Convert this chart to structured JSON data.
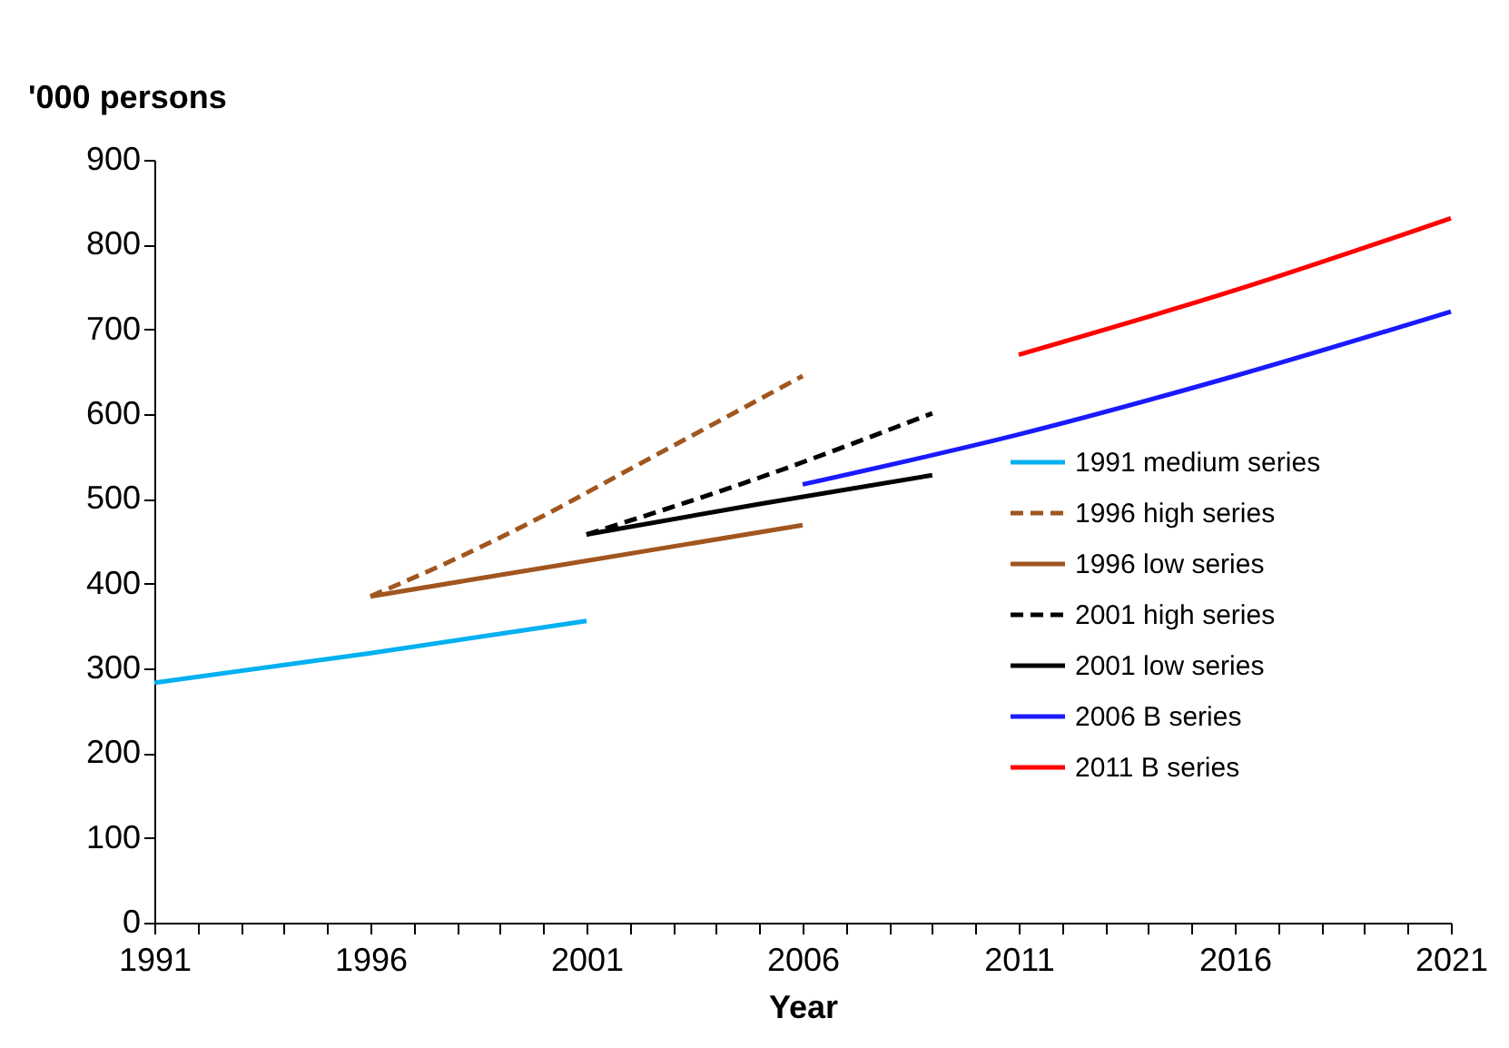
{
  "chart_data": {
    "type": "line",
    "xlabel": "Year",
    "ylabel": "'000 persons",
    "xlim": [
      1991,
      2021
    ],
    "ylim": [
      0,
      900
    ],
    "xticks": [
      1991,
      {
        "value": 1992,
        "label": null
      },
      {
        "value": 1993,
        "label": null
      },
      {
        "value": 1994,
        "label": null
      },
      {
        "value": 1995,
        "label": null
      },
      1996,
      {
        "value": 1997,
        "label": null
      },
      {
        "value": 1998,
        "label": null
      },
      {
        "value": 1999,
        "label": null
      },
      {
        "value": 2000,
        "label": null
      },
      2001,
      {
        "value": 2002,
        "label": null
      },
      {
        "value": 2003,
        "label": null
      },
      {
        "value": 2004,
        "label": null
      },
      {
        "value": 2005,
        "label": null
      },
      2006,
      {
        "value": 2007,
        "label": null
      },
      {
        "value": 2008,
        "label": null
      },
      {
        "value": 2009,
        "label": null
      },
      {
        "value": 2010,
        "label": null
      },
      2011,
      {
        "value": 2012,
        "label": null
      },
      {
        "value": 2013,
        "label": null
      },
      {
        "value": 2014,
        "label": null
      },
      {
        "value": 2015,
        "label": null
      },
      2016,
      {
        "value": 2017,
        "label": null
      },
      {
        "value": 2018,
        "label": null
      },
      {
        "value": 2019,
        "label": null
      },
      {
        "value": 2020,
        "label": null
      },
      2021
    ],
    "yticks": [
      0,
      100,
      200,
      300,
      400,
      500,
      600,
      700,
      800,
      900
    ],
    "grid": false,
    "legend": "right",
    "marker": "none",
    "series": [
      {
        "name": "1991 medium series",
        "color": "#00b0f0",
        "line_style": "solid",
        "x": [
          1991,
          1996,
          2001
        ],
        "values": [
          283,
          318,
          356
        ]
      },
      {
        "name": "1996 high series",
        "color": "#a0561e",
        "line_style": "dashed",
        "x": [
          1996,
          1998,
          2000,
          2002,
          2004,
          2006
        ],
        "values": [
          385,
          430,
          480,
          535,
          590,
          645
        ]
      },
      {
        "name": "1996 low series",
        "color": "#a0561e",
        "line_style": "solid",
        "x": [
          1996,
          2001,
          2006
        ],
        "values": [
          385,
          427,
          469
        ]
      },
      {
        "name": "2001 high series",
        "color": "#000000",
        "line_style": "dashed",
        "x": [
          2001,
          2005,
          2009
        ],
        "values": [
          458,
          525,
          601
        ]
      },
      {
        "name": "2001 low series",
        "color": "#000000",
        "line_style": "solid",
        "x": [
          2001,
          2005,
          2009
        ],
        "values": [
          458,
          494,
          528
        ]
      },
      {
        "name": "2006 B series",
        "color": "#1a1aff",
        "line_style": "solid",
        "x": [
          2006,
          2011,
          2016,
          2021
        ],
        "values": [
          517,
          576,
          645,
          721
        ]
      },
      {
        "name": "2011 B series",
        "color": "#ff0000",
        "line_style": "solid",
        "x": [
          2011,
          2016,
          2021
        ],
        "values": [
          670,
          746,
          831
        ]
      }
    ]
  }
}
